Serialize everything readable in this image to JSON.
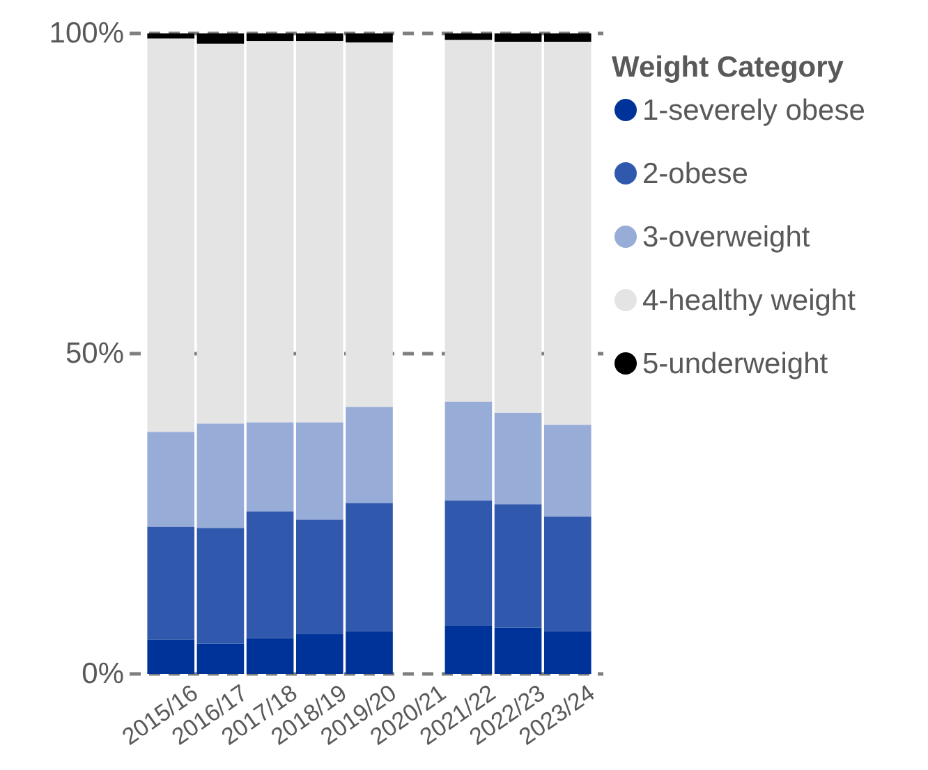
{
  "chart_data": {
    "type": "bar",
    "stacked": true,
    "legend_title": "Weight Category",
    "legend": "top right",
    "grid": "y",
    "categories": [
      "2015/16",
      "2016/17",
      "2017/18",
      "2018/19",
      "2019/20",
      "2020/21",
      "2021/22",
      "2022/23",
      "2023/24"
    ],
    "series": [
      {
        "name": "1-severely obese",
        "color": "#003399",
        "values": [
          5.4,
          4.7,
          5.6,
          6.2,
          6.7,
          null,
          7.5,
          7.2,
          6.7
        ]
      },
      {
        "name": "2-obese",
        "color": "#3059ad",
        "values": [
          17.6,
          18.1,
          19.8,
          17.9,
          20.0,
          null,
          19.6,
          19.3,
          17.9
        ]
      },
      {
        "name": "3-overweight",
        "color": "#98acd8",
        "values": [
          14.8,
          16.3,
          13.9,
          15.2,
          15.0,
          null,
          15.4,
          14.3,
          14.3
        ]
      },
      {
        "name": "4-healthy weight",
        "color": "#e4e4e4",
        "values": [
          61.4,
          59.3,
          59.5,
          59.5,
          56.9,
          null,
          56.5,
          57.9,
          59.8
        ]
      },
      {
        "name": "5-underweight",
        "color": "#000000",
        "values": [
          0.8,
          1.6,
          1.2,
          1.2,
          1.4,
          null,
          1.0,
          1.3,
          1.3
        ]
      }
    ],
    "ylim": [
      0,
      100
    ],
    "yticks": [
      {
        "value": 0,
        "label": "0%"
      },
      {
        "value": 50,
        "label": "50%"
      },
      {
        "value": 100,
        "label": "100%"
      }
    ]
  }
}
